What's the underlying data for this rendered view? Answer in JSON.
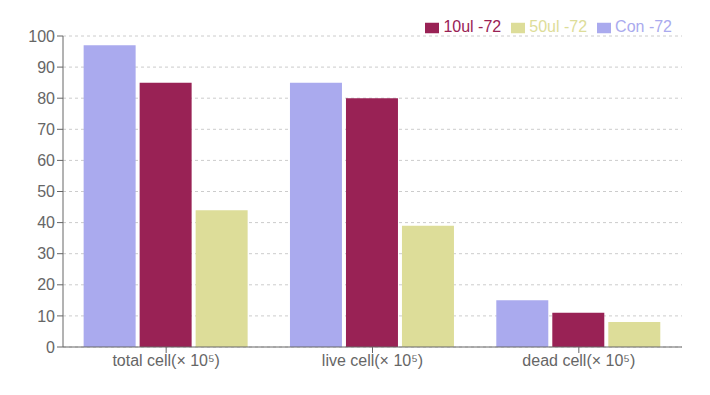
{
  "chart_data": {
    "type": "bar",
    "categories": [
      "total cell(× 10⁵)",
      "live cell(× 10⁵)",
      "dead cell(× 10⁵)"
    ],
    "series": [
      {
        "name": "Con -72",
        "color": "#aaaaee",
        "values": [
          97,
          85,
          15
        ]
      },
      {
        "name": "10ul -72",
        "color": "#992255",
        "values": [
          85,
          80,
          11
        ]
      },
      {
        "name": "50ul -72",
        "color": "#dddd99",
        "values": [
          44,
          39,
          8
        ]
      }
    ],
    "ylim": [
      0,
      100
    ],
    "yticks": [
      0,
      10,
      20,
      30,
      40,
      50,
      60,
      70,
      80,
      90,
      100
    ],
    "grid": true,
    "legend": "upper right"
  }
}
